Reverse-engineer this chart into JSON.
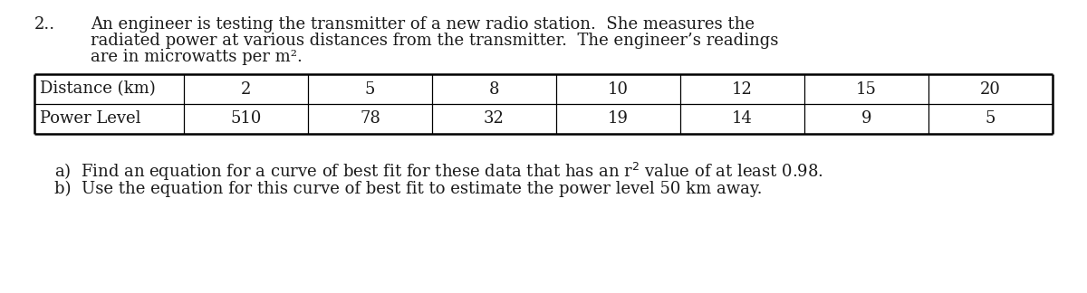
{
  "problem_number": "2..",
  "intro_line1": "An engineer is testing the transmitter of a new radio station.  She measures the",
  "intro_line2": "radiated power at various distances from the transmitter.  The engineer’s readings",
  "intro_line3": "are in microwatts per m².",
  "table_row1_label": "Distance (km)",
  "table_row2_label": "Power Level",
  "distances": [
    "2",
    "5",
    "8",
    "10",
    "12",
    "15",
    "20"
  ],
  "power_levels": [
    "510",
    "78",
    "32",
    "19",
    "14",
    "9",
    "5"
  ],
  "part_a_pre": "a)  Find an equation for a curve of best fit for these data that has an r",
  "part_a_sup": "2",
  "part_a_post": " value of at least 0.98.",
  "part_b": "b)  Use the equation for this curve of best fit to estimate the power level 50 km away.",
  "font_size": 13.0,
  "bg_color": "#ffffff",
  "text_color": "#1a1a1a",
  "font_family": "DejaVu Serif"
}
